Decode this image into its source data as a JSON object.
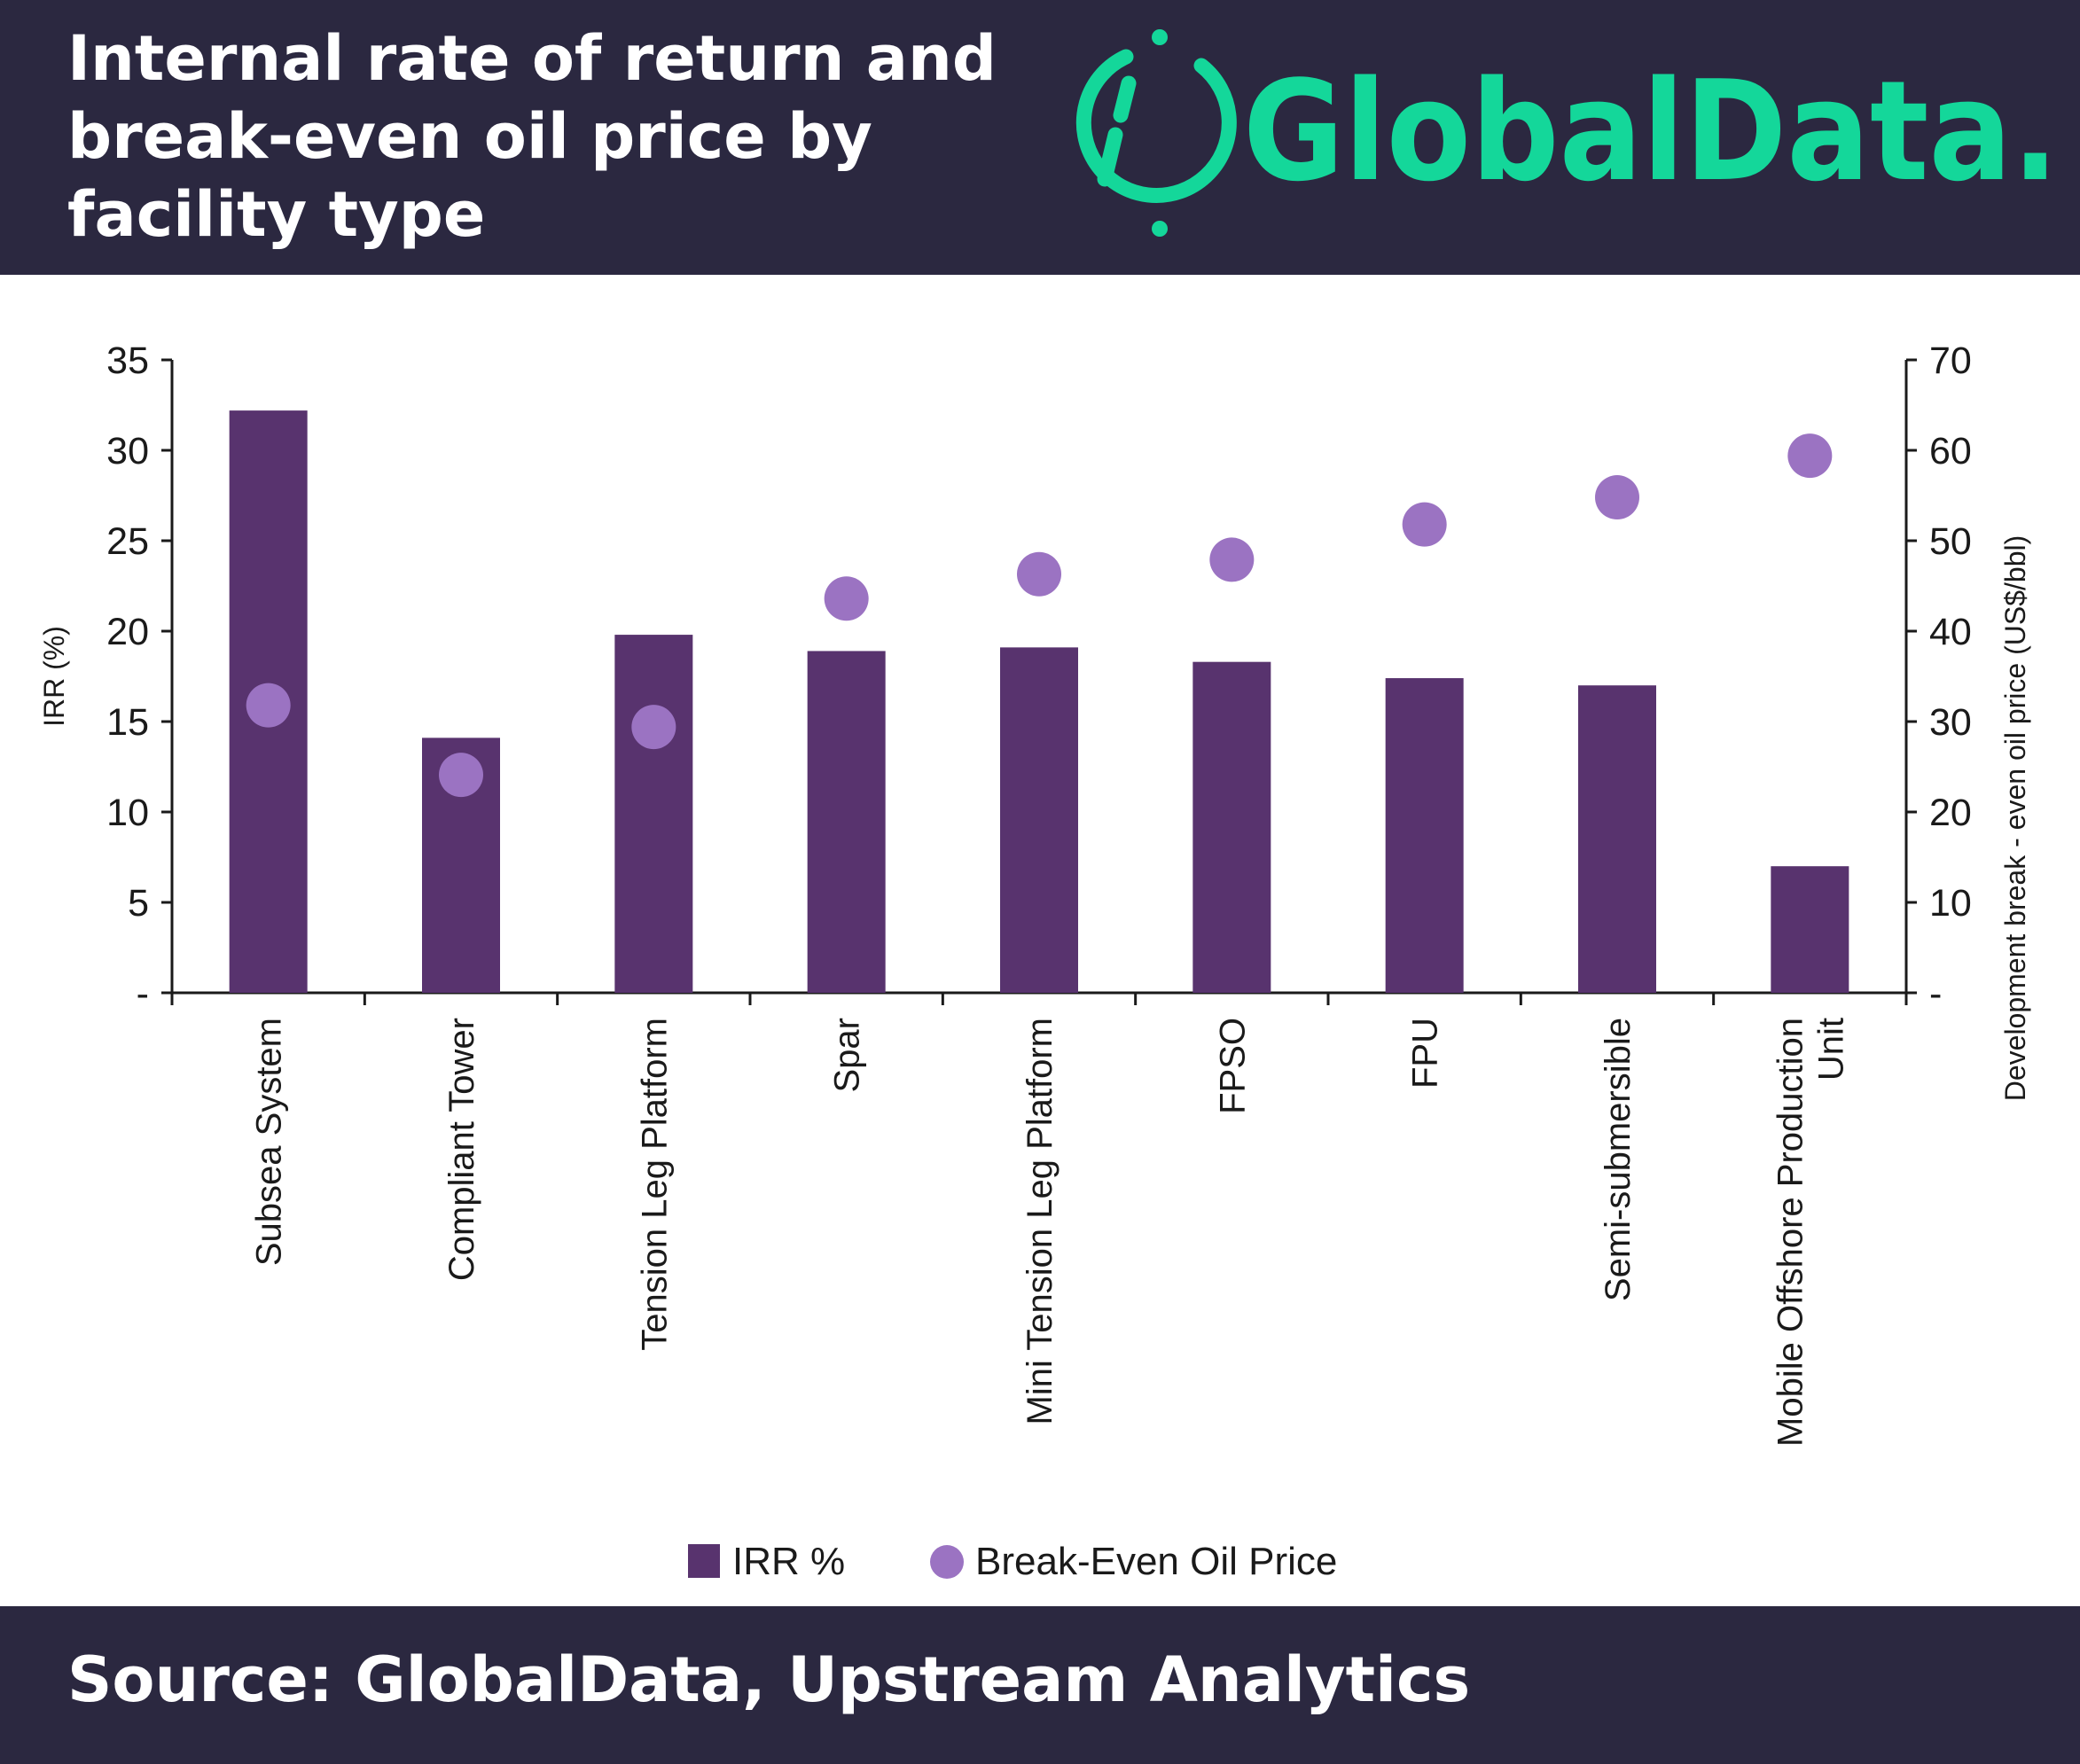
{
  "header": {
    "title_line1": "Internal rate of return and",
    "title_line2": "break-even oil price by",
    "title_line3": "facility type",
    "brand_name": "GlobalData.",
    "brand_color": "#14d79a",
    "background": "#2b2840"
  },
  "footer": {
    "source": "Source: GlobalData, Upstream Analytics"
  },
  "chart_data": {
    "type": "bar",
    "categories": [
      [
        "Subsea System"
      ],
      [
        "Compliant Tower"
      ],
      [
        "Tension Leg Platform"
      ],
      [
        "Spar"
      ],
      [
        "Mini Tension Leg Platform"
      ],
      [
        "FPSO"
      ],
      [
        "FPU"
      ],
      [
        "Semi-submersible"
      ],
      [
        "Mobile Offshore Production",
        "Unit"
      ]
    ],
    "series": [
      {
        "name": "IRR %",
        "type": "bar",
        "axis": "left",
        "color": "#58336e",
        "values": [
          32.2,
          14.1,
          19.8,
          18.9,
          19.1,
          18.3,
          17.4,
          17.0,
          7.0
        ]
      },
      {
        "name": "Break-Even Oil Price",
        "type": "scatter",
        "axis": "right",
        "color": "#9b73c2",
        "values": [
          31.8,
          24.1,
          29.4,
          43.6,
          46.3,
          47.9,
          51.8,
          54.8,
          59.4
        ]
      }
    ],
    "y_left": {
      "label": "IRR (%)",
      "range": [
        0,
        35
      ],
      "ticks": [
        "-",
        "5",
        "10",
        "15",
        "20",
        "25",
        "30",
        "35"
      ]
    },
    "y_right": {
      "label": "Development break - even oil price (US$/bbl)",
      "range": [
        0,
        70
      ],
      "ticks": [
        "-",
        "10",
        "20",
        "30",
        "40",
        "50",
        "60",
        "70"
      ]
    },
    "legend": [
      "IRR %",
      "Break-Even Oil Price"
    ],
    "legend_position": "bottom-center",
    "grid": false
  }
}
